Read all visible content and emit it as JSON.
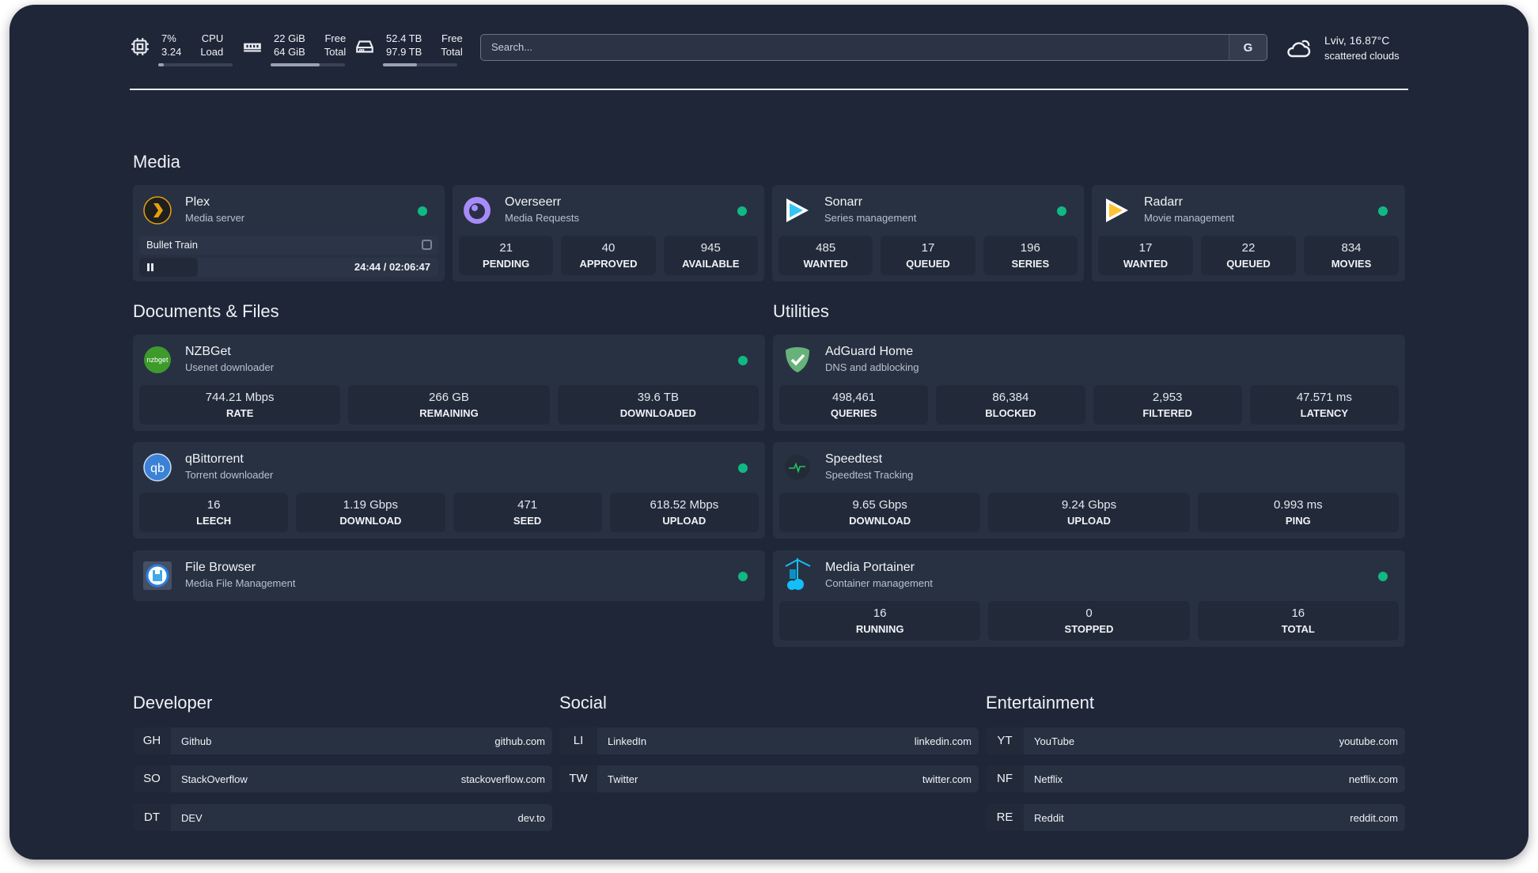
{
  "topbar": {
    "cpu": {
      "value1": "7%",
      "label1": "CPU",
      "value2": "3.24",
      "label2": "Load",
      "usage_percent": 7
    },
    "memory": {
      "value1": "22 GiB",
      "label1": "Free",
      "value2": "64 GiB",
      "label2": "Total",
      "bar_percent": 66
    },
    "disk": {
      "value1": "52.4 TB",
      "label1": "Free",
      "value2": "97.9 TB",
      "label2": "Total",
      "bar_percent": 46
    },
    "search": {
      "placeholder": "Search...",
      "provider_icon": "G"
    },
    "weather": {
      "location_temp": "Lviv, 16.87°C",
      "condition": "scattered clouds",
      "icon": "cloud-icon"
    }
  },
  "status_color": "#10b981",
  "media": {
    "title": "Media",
    "plex": {
      "name": "Plex",
      "desc": "Media server",
      "now_playing": "Bullet Train",
      "time": "24:44 / 02:06:47",
      "progress_percent": 19.5
    },
    "cards": [
      {
        "name": "Overseerr",
        "desc": "Media Requests",
        "stats": [
          {
            "v": "21",
            "l": "PENDING"
          },
          {
            "v": "40",
            "l": "APPROVED"
          },
          {
            "v": "945",
            "l": "AVAILABLE"
          }
        ]
      },
      {
        "name": "Sonarr",
        "desc": "Series management",
        "stats": [
          {
            "v": "485",
            "l": "WANTED"
          },
          {
            "v": "17",
            "l": "QUEUED"
          },
          {
            "v": "196",
            "l": "SERIES"
          }
        ]
      },
      {
        "name": "Radarr",
        "desc": "Movie management",
        "stats": [
          {
            "v": "17",
            "l": "WANTED"
          },
          {
            "v": "22",
            "l": "QUEUED"
          },
          {
            "v": "834",
            "l": "MOVIES"
          }
        ]
      }
    ]
  },
  "docs": {
    "title": "Documents & Files",
    "nzbget": {
      "name": "NZBGet",
      "desc": "Usenet downloader",
      "logo_text": "nzbget",
      "stats": [
        {
          "v": "744.21 Mbps",
          "l": "RATE"
        },
        {
          "v": "266 GB",
          "l": "REMAINING"
        },
        {
          "v": "39.6 TB",
          "l": "DOWNLOADED"
        }
      ]
    },
    "qbit": {
      "name": "qBittorrent",
      "desc": "Torrent downloader",
      "logo_text": "qb",
      "stats": [
        {
          "v": "16",
          "l": "LEECH"
        },
        {
          "v": "1.19 Gbps",
          "l": "DOWNLOAD"
        },
        {
          "v": "471",
          "l": "SEED"
        },
        {
          "v": "618.52 Mbps",
          "l": "UPLOAD"
        }
      ]
    },
    "filebrowser": {
      "name": "File Browser",
      "desc": "Media File Management"
    }
  },
  "utilities": {
    "title": "Utilities",
    "adguard": {
      "name": "AdGuard Home",
      "desc": "DNS and adblocking",
      "stats": [
        {
          "v": "498,461",
          "l": "QUERIES"
        },
        {
          "v": "86,384",
          "l": "BLOCKED"
        },
        {
          "v": "2,953",
          "l": "FILTERED"
        },
        {
          "v": "47.571 ms",
          "l": "LATENCY"
        }
      ]
    },
    "speedtest": {
      "name": "Speedtest",
      "desc": "Speedtest Tracking",
      "stats": [
        {
          "v": "9.65 Gbps",
          "l": "DOWNLOAD"
        },
        {
          "v": "9.24 Gbps",
          "l": "UPLOAD"
        },
        {
          "v": "0.993 ms",
          "l": "PING"
        }
      ]
    },
    "portainer": {
      "name": "Media Portainer",
      "desc": "Container management",
      "stats": [
        {
          "v": "16",
          "l": "RUNNING"
        },
        {
          "v": "0",
          "l": "STOPPED"
        },
        {
          "v": "16",
          "l": "TOTAL"
        }
      ]
    }
  },
  "bookmarks": [
    {
      "title": "Developer",
      "items": [
        {
          "ab": "GH",
          "name": "Github",
          "url": "github.com"
        },
        {
          "ab": "SO",
          "name": "StackOverflow",
          "url": "stackoverflow.com"
        },
        {
          "ab": "DT",
          "name": "DEV",
          "url": "dev.to"
        }
      ]
    },
    {
      "title": "Social",
      "items": [
        {
          "ab": "LI",
          "name": "LinkedIn",
          "url": "linkedin.com"
        },
        {
          "ab": "TW",
          "name": "Twitter",
          "url": "twitter.com"
        }
      ]
    },
    {
      "title": "Entertainment",
      "items": [
        {
          "ab": "YT",
          "name": "YouTube",
          "url": "youtube.com"
        },
        {
          "ab": "NF",
          "name": "Netflix",
          "url": "netflix.com"
        },
        {
          "ab": "RE",
          "name": "Reddit",
          "url": "reddit.com"
        }
      ]
    }
  ]
}
